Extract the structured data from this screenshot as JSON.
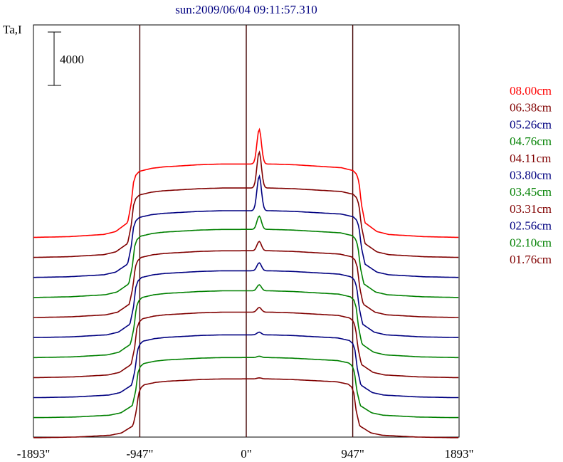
{
  "chart_data": {
    "type": "line",
    "title": "sun:2009/06/04 09:11:57.310",
    "ylabel": "Ta,I",
    "scale_bar_label": "4000",
    "scale_bar_value": 4000,
    "x_ticks": [
      {
        "value": -1893,
        "label": "-1893\""
      },
      {
        "value": -947,
        "label": "-947\""
      },
      {
        "value": 0,
        "label": "0\""
      },
      {
        "value": 947,
        "label": "947\""
      },
      {
        "value": 1893,
        "label": "1893\""
      }
    ],
    "xlim": [
      -1893,
      1893
    ],
    "limb_markers": [
      -947,
      0,
      947
    ],
    "grid": false,
    "legend_position": "right",
    "profile_x": [
      -1893,
      -1800,
      -1500,
      -1200,
      -1100,
      -1000,
      -970,
      -950,
      -930,
      -900,
      -800,
      -700,
      -600,
      -400,
      -200,
      -100,
      0,
      60,
      100,
      115,
      130,
      150,
      200,
      400,
      600,
      800,
      900,
      930,
      950,
      970,
      1000,
      1100,
      1200,
      1500,
      1800,
      1893
    ],
    "profile_shape": [
      0,
      0,
      0.01,
      0.04,
      0.08,
      0.2,
      0.45,
      0.75,
      0.85,
      0.9,
      0.94,
      0.96,
      0.97,
      0.99,
      1.0,
      1.0,
      1.0,
      1.0,
      1.0,
      1.0,
      1.0,
      1.0,
      1.0,
      0.99,
      0.97,
      0.95,
      0.91,
      0.86,
      0.75,
      0.45,
      0.2,
      0.08,
      0.04,
      0.01,
      0,
      0
    ],
    "series": [
      {
        "name": "08.00cm",
        "color": "#ff0000",
        "offset": 14000,
        "amplitude": 5500,
        "peak": 2600,
        "width": 1000
      },
      {
        "name": "06.38cm",
        "color": "#800000",
        "offset": 12500,
        "amplitude": 5200,
        "peak": 2700,
        "width": 1000
      },
      {
        "name": "05.26cm",
        "color": "#000080",
        "offset": 11000,
        "amplitude": 5000,
        "peak": 2600,
        "width": 1000
      },
      {
        "name": "04.76cm",
        "color": "#008000",
        "offset": 9500,
        "amplitude": 5100,
        "peak": 1000,
        "width": 990
      },
      {
        "name": "04.11cm",
        "color": "#800000",
        "offset": 8000,
        "amplitude": 5000,
        "peak": 700,
        "width": 985
      },
      {
        "name": "03.80cm",
        "color": "#000080",
        "offset": 6500,
        "amplitude": 5000,
        "peak": 600,
        "width": 980
      },
      {
        "name": "03.45cm",
        "color": "#008000",
        "offset": 5000,
        "amplitude": 5000,
        "peak": 450,
        "width": 975
      },
      {
        "name": "03.31cm",
        "color": "#800000",
        "offset": 3500,
        "amplitude": 4900,
        "peak": 350,
        "width": 970
      },
      {
        "name": "02.56cm",
        "color": "#000080",
        "offset": 2000,
        "amplitude": 4700,
        "peak": 200,
        "width": 965
      },
      {
        "name": "02.10cm",
        "color": "#008000",
        "offset": 500,
        "amplitude": 4500,
        "peak": 100,
        "width": 960
      },
      {
        "name": "01.76cm",
        "color": "#800000",
        "offset": -1000,
        "amplitude": 4400,
        "peak": 80,
        "width": 955
      }
    ]
  }
}
